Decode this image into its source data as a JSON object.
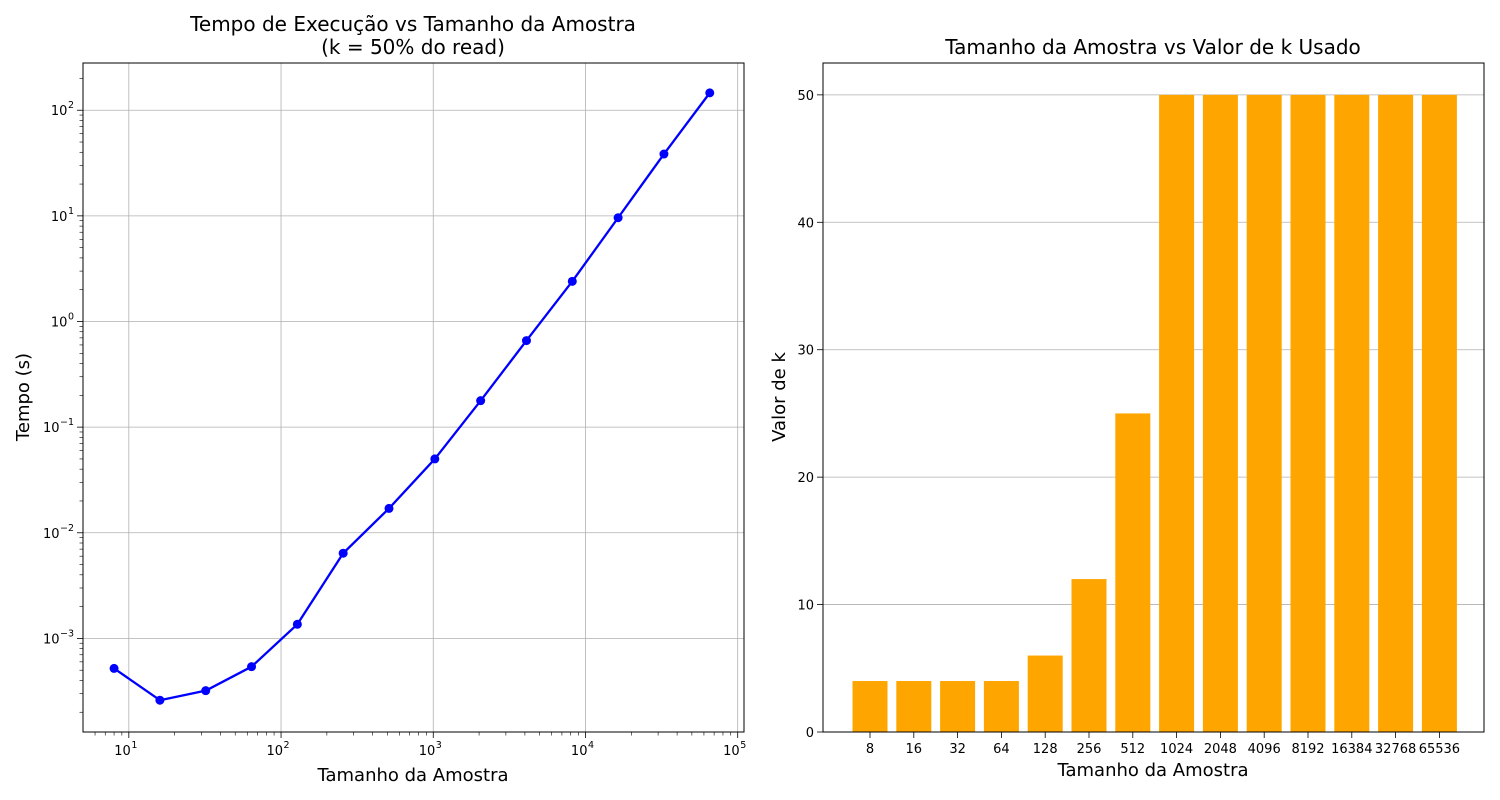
{
  "chart_data": [
    {
      "type": "line",
      "title_lines": [
        "Tempo de Execução vs Tamanho da Amostra",
        "(k = 50% do read)"
      ],
      "xlabel": "Tamanho da Amostra",
      "ylabel": "Tempo (s)",
      "xscale": "log",
      "yscale": "log",
      "xlim": [
        5,
        110000
      ],
      "ylim": [
        0.00013,
        280
      ],
      "x_ticks": [
        {
          "mant": "10",
          "exp": "1",
          "value": 10
        },
        {
          "mant": "10",
          "exp": "2",
          "value": 100
        },
        {
          "mant": "10",
          "exp": "3",
          "value": 1000
        },
        {
          "mant": "10",
          "exp": "4",
          "value": 10000
        },
        {
          "mant": "10",
          "exp": "5",
          "value": 100000
        }
      ],
      "y_ticks": [
        {
          "mant": "10",
          "exp": "−3",
          "value": 0.001
        },
        {
          "mant": "10",
          "exp": "−2",
          "value": 0.01
        },
        {
          "mant": "10",
          "exp": "−1",
          "value": 0.1
        },
        {
          "mant": "10",
          "exp": "0",
          "value": 1
        },
        {
          "mant": "10",
          "exp": "1",
          "value": 10
        },
        {
          "mant": "10",
          "exp": "2",
          "value": 100
        }
      ],
      "grid": true,
      "series_color": "#0000ff",
      "x": [
        8,
        16,
        32,
        64,
        128,
        256,
        512,
        1024,
        2048,
        4096,
        8192,
        16384,
        32768,
        65536
      ],
      "y": [
        0.00052,
        0.00026,
        0.00032,
        0.00054,
        0.00136,
        0.0064,
        0.017,
        0.05,
        0.178,
        0.66,
        2.4,
        9.6,
        38.5,
        146
      ]
    },
    {
      "type": "bar",
      "title": "Tamanho da Amostra vs Valor de k Usado",
      "xlabel": "Tamanho da Amostra",
      "ylabel": "Valor de k",
      "ylim": [
        0,
        52.5
      ],
      "y_ticks": [
        "0",
        "10",
        "20",
        "30",
        "40",
        "50"
      ],
      "grid": "y",
      "bar_color": "#ffa500",
      "categories": [
        "8",
        "16",
        "32",
        "64",
        "128",
        "256",
        "512",
        "1024",
        "2048",
        "4096",
        "8192",
        "16384",
        "32768",
        "65536"
      ],
      "values": [
        4,
        4,
        4,
        4,
        6,
        12,
        25,
        50,
        50,
        50,
        50,
        50,
        50,
        50
      ]
    }
  ]
}
